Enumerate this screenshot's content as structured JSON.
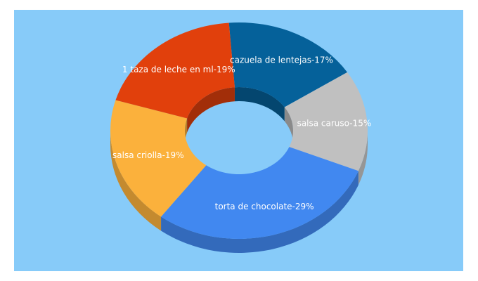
{
  "chart_data": {
    "type": "pie",
    "variant": "3d-donut",
    "slices": [
      {
        "label": "cazuela de lentejas-17%",
        "value": 17,
        "color": "#05619a"
      },
      {
        "label": "salsa caruso-15%",
        "value": 15,
        "color": "#c0c0c0"
      },
      {
        "label": "torta de chocolate-29%",
        "value": 29,
        "color": "#4188f0"
      },
      {
        "label": "salsa criolla-19%",
        "value": 19,
        "color": "#fbb13c"
      },
      {
        "label": "1 taza de leche en ml-19%",
        "value": 19,
        "color": "#e1400c"
      }
    ],
    "background": "#87cbf9"
  }
}
